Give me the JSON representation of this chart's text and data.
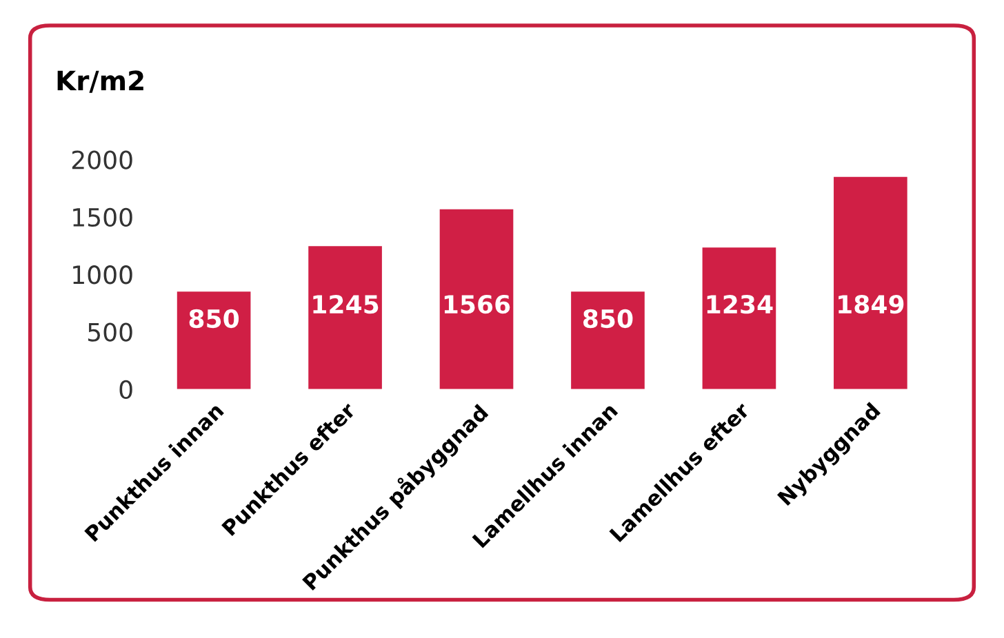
{
  "chart_data": {
    "type": "bar",
    "ylabel": "Kr/m2",
    "categories": [
      "Punkthus innan",
      "Punkthus efter",
      "Punkthus påbyggnad",
      "Lamellhus innan",
      "Lamellhus efter",
      "Nybyggnad"
    ],
    "values": [
      850,
      1245,
      1566,
      850,
      1234,
      1849
    ],
    "color": "#d01f45",
    "ylim": [
      0,
      2000
    ],
    "yticks": [
      0,
      500,
      1000,
      1500,
      2000
    ],
    "grid": false,
    "data_labels": true
  }
}
